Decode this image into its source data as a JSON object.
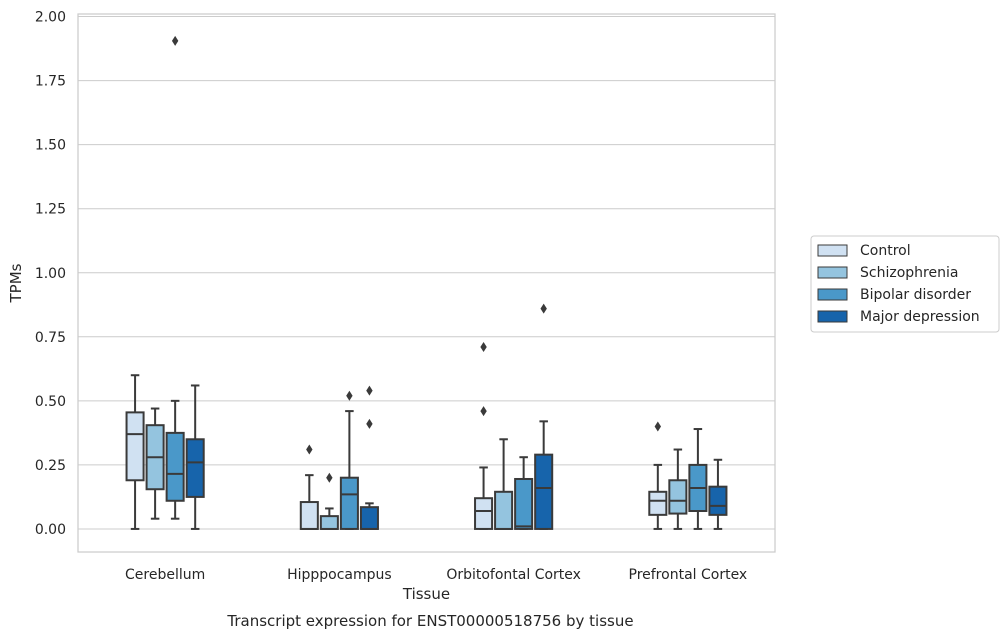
{
  "chart_data": {
    "type": "boxplot",
    "title": "",
    "caption": "Transcript expression for ENST00000518756 by tissue",
    "xlabel": "Tissue",
    "ylabel": "TPMs",
    "ylim": [
      -0.09,
      2.01
    ],
    "yticks": [
      "0.00",
      "0.25",
      "0.50",
      "0.75",
      "1.00",
      "1.25",
      "1.50",
      "1.75",
      "2.00"
    ],
    "ytick_values": [
      0,
      0.25,
      0.5,
      0.75,
      1.0,
      1.25,
      1.5,
      1.75,
      2.0
    ],
    "grid": true,
    "legend_position": "right",
    "categories": [
      "Cerebellum",
      "Hipppocampus",
      "Orbitofontal Cortex",
      "Prefrontal Cortex"
    ],
    "series": [
      {
        "name": "Control",
        "color": "#d0e1f2",
        "boxes": [
          {
            "whislo": 0.0,
            "q1": 0.19,
            "med": 0.37,
            "q3": 0.455,
            "whishi": 0.6,
            "fliers": []
          },
          {
            "whislo": 0.0,
            "q1": 0.0,
            "med": 0.0,
            "q3": 0.105,
            "whishi": 0.21,
            "fliers": [
              0.31
            ]
          },
          {
            "whislo": 0.0,
            "q1": 0.0,
            "med": 0.07,
            "q3": 0.12,
            "whishi": 0.24,
            "fliers": [
              0.46,
              0.71
            ]
          },
          {
            "whislo": 0.0,
            "q1": 0.055,
            "med": 0.11,
            "q3": 0.145,
            "whishi": 0.25,
            "fliers": [
              0.4
            ]
          }
        ]
      },
      {
        "name": "Schizophrenia",
        "color": "#94c4df",
        "boxes": [
          {
            "whislo": 0.04,
            "q1": 0.155,
            "med": 0.28,
            "q3": 0.405,
            "whishi": 0.47,
            "fliers": []
          },
          {
            "whislo": 0.0,
            "q1": 0.0,
            "med": 0.0,
            "q3": 0.05,
            "whishi": 0.08,
            "fliers": [
              0.2
            ]
          },
          {
            "whislo": 0.0,
            "q1": 0.0,
            "med": 0.0,
            "q3": 0.145,
            "whishi": 0.35,
            "fliers": []
          },
          {
            "whislo": 0.0,
            "q1": 0.06,
            "med": 0.11,
            "q3": 0.19,
            "whishi": 0.31,
            "fliers": []
          }
        ]
      },
      {
        "name": "Bipolar disorder",
        "color": "#4a98c9",
        "boxes": [
          {
            "whislo": 0.04,
            "q1": 0.11,
            "med": 0.215,
            "q3": 0.375,
            "whishi": 0.5,
            "fliers": [
              1.905
            ]
          },
          {
            "whislo": 0.0,
            "q1": 0.0,
            "med": 0.135,
            "q3": 0.2,
            "whishi": 0.46,
            "fliers": [
              0.52
            ]
          },
          {
            "whislo": 0.0,
            "q1": 0.0,
            "med": 0.01,
            "q3": 0.195,
            "whishi": 0.28,
            "fliers": []
          },
          {
            "whislo": 0.0,
            "q1": 0.07,
            "med": 0.16,
            "q3": 0.25,
            "whishi": 0.39,
            "fliers": []
          }
        ]
      },
      {
        "name": "Major depression",
        "color": "#1764ab",
        "boxes": [
          {
            "whislo": 0.0,
            "q1": 0.125,
            "med": 0.26,
            "q3": 0.35,
            "whishi": 0.56,
            "fliers": []
          },
          {
            "whislo": 0.0,
            "q1": 0.0,
            "med": 0.0,
            "q3": 0.085,
            "whishi": 0.1,
            "fliers": [
              0.41,
              0.54
            ]
          },
          {
            "whislo": 0.0,
            "q1": 0.0,
            "med": 0.16,
            "q3": 0.29,
            "whishi": 0.42,
            "fliers": [
              0.86
            ]
          },
          {
            "whislo": 0.0,
            "q1": 0.055,
            "med": 0.09,
            "q3": 0.165,
            "whishi": 0.27,
            "fliers": []
          }
        ]
      }
    ]
  }
}
